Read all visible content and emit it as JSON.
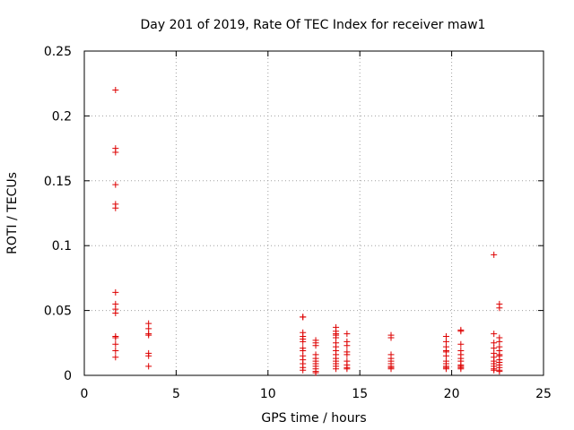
{
  "chart_data": {
    "type": "scatter",
    "title": "Day 201 of 2019, Rate Of TEC Index for receiver maw1",
    "xlabel": "GPS time / hours",
    "ylabel": "ROTI / TECUs",
    "xlim": [
      0,
      25
    ],
    "ylim": [
      0,
      0.25
    ],
    "xticks": [
      0,
      5,
      10,
      15,
      20,
      25
    ],
    "yticks": [
      0,
      0.05,
      0.1,
      0.15,
      0.2,
      0.25
    ],
    "xtick_labels": [
      "0",
      "5",
      "10",
      "15",
      "20",
      "25"
    ],
    "ytick_labels": [
      "0",
      "0.05",
      "0.1",
      "0.15",
      "0.2",
      "0.25"
    ],
    "grid": true,
    "marker": "+",
    "color": "#dd0000",
    "series": [
      {
        "name": "ROTI",
        "points": [
          [
            1.7,
            0.22
          ],
          [
            1.7,
            0.175
          ],
          [
            1.7,
            0.172
          ],
          [
            1.7,
            0.147
          ],
          [
            1.7,
            0.132
          ],
          [
            1.7,
            0.129
          ],
          [
            1.7,
            0.064
          ],
          [
            1.7,
            0.055
          ],
          [
            1.7,
            0.051
          ],
          [
            1.7,
            0.048
          ],
          [
            1.7,
            0.03
          ],
          [
            1.7,
            0.029
          ],
          [
            1.7,
            0.024
          ],
          [
            1.7,
            0.019
          ],
          [
            1.7,
            0.014
          ],
          [
            3.5,
            0.04
          ],
          [
            3.5,
            0.036
          ],
          [
            3.5,
            0.032
          ],
          [
            3.5,
            0.031
          ],
          [
            3.5,
            0.017
          ],
          [
            3.5,
            0.015
          ],
          [
            3.5,
            0.007
          ],
          [
            11.9,
            0.045
          ],
          [
            11.9,
            0.045
          ],
          [
            11.9,
            0.033
          ],
          [
            11.9,
            0.03
          ],
          [
            11.9,
            0.028
          ],
          [
            11.9,
            0.026
          ],
          [
            11.9,
            0.021
          ],
          [
            11.9,
            0.019
          ],
          [
            11.9,
            0.015
          ],
          [
            11.9,
            0.012
          ],
          [
            11.9,
            0.009
          ],
          [
            11.9,
            0.006
          ],
          [
            11.9,
            0.004
          ],
          [
            12.6,
            0.027
          ],
          [
            12.6,
            0.025
          ],
          [
            12.6,
            0.023
          ],
          [
            12.6,
            0.016
          ],
          [
            12.6,
            0.013
          ],
          [
            12.6,
            0.011
          ],
          [
            12.6,
            0.009
          ],
          [
            12.6,
            0.007
          ],
          [
            12.6,
            0.005
          ],
          [
            12.6,
            0.003
          ],
          [
            12.6,
            0.002
          ],
          [
            13.7,
            0.037
          ],
          [
            13.7,
            0.034
          ],
          [
            13.7,
            0.032
          ],
          [
            13.7,
            0.031
          ],
          [
            13.7,
            0.029
          ],
          [
            13.7,
            0.025
          ],
          [
            13.7,
            0.022
          ],
          [
            13.7,
            0.019
          ],
          [
            13.7,
            0.016
          ],
          [
            13.7,
            0.013
          ],
          [
            13.7,
            0.011
          ],
          [
            13.7,
            0.009
          ],
          [
            13.7,
            0.007
          ],
          [
            13.7,
            0.005
          ],
          [
            14.3,
            0.032
          ],
          [
            14.3,
            0.026
          ],
          [
            14.3,
            0.023
          ],
          [
            14.3,
            0.018
          ],
          [
            14.3,
            0.016
          ],
          [
            14.3,
            0.011
          ],
          [
            14.3,
            0.008
          ],
          [
            14.3,
            0.006
          ],
          [
            14.3,
            0.005
          ],
          [
            16.7,
            0.031
          ],
          [
            16.7,
            0.029
          ],
          [
            16.7,
            0.016
          ],
          [
            16.7,
            0.013
          ],
          [
            16.7,
            0.011
          ],
          [
            16.7,
            0.009
          ],
          [
            16.7,
            0.007
          ],
          [
            16.7,
            0.006
          ],
          [
            16.7,
            0.005
          ],
          [
            19.7,
            0.03
          ],
          [
            19.7,
            0.026
          ],
          [
            19.7,
            0.022
          ],
          [
            19.7,
            0.019
          ],
          [
            19.7,
            0.018
          ],
          [
            19.7,
            0.015
          ],
          [
            19.7,
            0.011
          ],
          [
            19.7,
            0.009
          ],
          [
            19.7,
            0.007
          ],
          [
            19.7,
            0.006
          ],
          [
            19.7,
            0.005
          ],
          [
            20.5,
            0.035
          ],
          [
            20.5,
            0.034
          ],
          [
            20.5,
            0.024
          ],
          [
            20.5,
            0.019
          ],
          [
            20.5,
            0.016
          ],
          [
            20.5,
            0.013
          ],
          [
            20.5,
            0.011
          ],
          [
            20.5,
            0.008
          ],
          [
            20.5,
            0.007
          ],
          [
            20.5,
            0.006
          ],
          [
            20.5,
            0.005
          ],
          [
            22.3,
            0.093
          ],
          [
            22.3,
            0.032
          ],
          [
            22.3,
            0.025
          ],
          [
            22.3,
            0.021
          ],
          [
            22.3,
            0.017
          ],
          [
            22.3,
            0.014
          ],
          [
            22.3,
            0.011
          ],
          [
            22.3,
            0.009
          ],
          [
            22.3,
            0.007
          ],
          [
            22.3,
            0.005
          ],
          [
            22.3,
            0.004
          ],
          [
            22.6,
            0.055
          ],
          [
            22.6,
            0.052
          ],
          [
            22.6,
            0.029
          ],
          [
            22.6,
            0.026
          ],
          [
            22.6,
            0.022
          ],
          [
            22.6,
            0.019
          ],
          [
            22.6,
            0.016
          ],
          [
            22.6,
            0.015
          ],
          [
            22.6,
            0.012
          ],
          [
            22.6,
            0.01
          ],
          [
            22.6,
            0.008
          ],
          [
            22.6,
            0.006
          ],
          [
            22.6,
            0.004
          ],
          [
            22.6,
            0.003
          ]
        ]
      }
    ]
  }
}
